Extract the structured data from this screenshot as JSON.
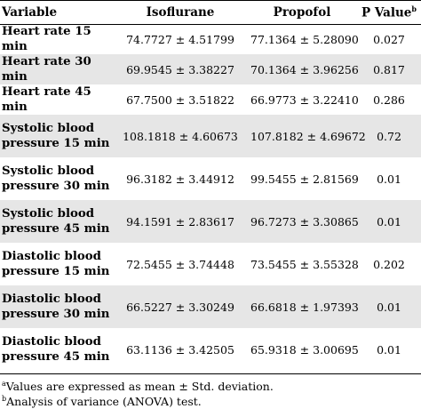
{
  "table": {
    "headers": {
      "variable": "Variable",
      "isoflurane": "Isoflurane",
      "propofol": "Propofol",
      "pvalue": "P Value",
      "pvalue_sup": "b"
    },
    "rows": [
      {
        "label": "Heart rate 15 min",
        "iso": "74.7727 ± 4.51799",
        "prop": "77.1364 ± 5.28090",
        "p": "0.027"
      },
      {
        "label": "Heart rate 30 min",
        "iso": "69.9545 ± 3.38227",
        "prop": "70.1364 ± 3.96256",
        "p": "0.817"
      },
      {
        "label": "Heart rate 45 min",
        "iso": "67.7500 ± 3.51822",
        "prop": "66.9773 ± 3.22410",
        "p": "0.286"
      },
      {
        "label": "Systolic blood pressure 15 min",
        "iso": "108.1818 ± 4.60673",
        "prop": "107.8182 ± 4.69672",
        "p": "0.72"
      },
      {
        "label": "Systolic blood pressure 30 min",
        "iso": "96.3182 ± 3.44912",
        "prop": "99.5455 ± 2.81569",
        "p": "0.01"
      },
      {
        "label": "Systolic blood pressure 45 min",
        "iso": "94.1591 ± 2.83617",
        "prop": "96.7273 ± 3.30865",
        "p": "0.01"
      },
      {
        "label": "Diastolic blood pressure 15 min",
        "iso": "72.5455 ± 3.74448",
        "prop": "73.5455 ± 3.55328",
        "p": "0.202"
      },
      {
        "label": "Diastolic blood pressure 30 min",
        "iso": "66.5227 ± 3.30249",
        "prop": "66.6818 ± 1.97393",
        "p": "0.01"
      },
      {
        "label": "Diastolic blood pressure 45 min",
        "iso": "63.1136 ± 3.42505",
        "prop": "65.9318 ± 3.00695",
        "p": "0.01"
      }
    ]
  },
  "footnotes": [
    {
      "mark": "a",
      "text": "Values are expressed as mean ± Std. deviation."
    },
    {
      "mark": "b",
      "text": "Analysis of variance (ANOVA) test."
    }
  ]
}
